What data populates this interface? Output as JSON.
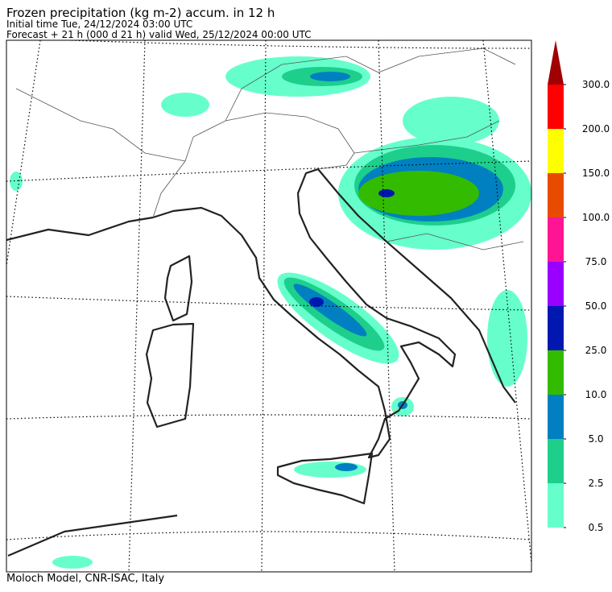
{
  "header": {
    "title": "Frozen precipitation (kg m-2) accum. in 12 h",
    "initial_time": "Initial time  Tue, 24/12/2024  03:00 UTC",
    "forecast": "Forecast  +  21 h  (000 d 21 h)  valid Wed, 25/12/2024 00:00 UTC"
  },
  "legend": {
    "levels": [
      {
        "value": 0.5,
        "label": "0.5"
      },
      {
        "value": 2.5,
        "label": "2.5"
      },
      {
        "value": 5,
        "label": "5.0"
      },
      {
        "value": 10,
        "label": "10.0"
      },
      {
        "value": 25,
        "label": "25.0"
      },
      {
        "value": 50,
        "label": "50.0"
      },
      {
        "value": 75,
        "label": "75.0"
      },
      {
        "value": 100,
        "label": "100.0"
      },
      {
        "value": 150,
        "label": "150.0"
      },
      {
        "value": 200,
        "label": "200.0"
      },
      {
        "value": 300,
        "label": "300.0"
      }
    ],
    "colors": [
      "#66ffcc",
      "#1ecf8c",
      "#0080c0",
      "#33bb00",
      "#0018b0",
      "#9900ff",
      "#ff1493",
      "#e84a00",
      "#ffff00",
      "#ff0000"
    ],
    "over_color": "#a00000"
  },
  "footer": "Moloch Model, CNR-ISAC, Italy"
}
